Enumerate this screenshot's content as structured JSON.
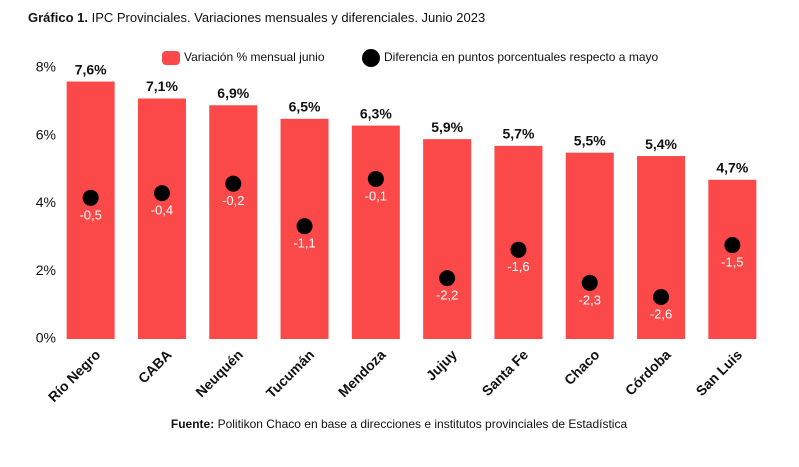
{
  "chart_data": {
    "type": "bar",
    "title_label": "Gráfico 1.",
    "title": "IPC Provinciales. Variaciones mensuales y diferenciales. Junio 2023",
    "source_label": "Fuente:",
    "source": "Politikon Chaco en base a direcciones e institutos provinciales de Estadística",
    "categories": [
      "Río Negro",
      "CABA",
      "Neuquén",
      "Tucumán",
      "Mendoza",
      "Jujuy",
      "Santa Fe",
      "Chaco",
      "Córdoba",
      "San Luis"
    ],
    "series": [
      {
        "name": "Variación % mensual junio",
        "type": "bar",
        "color": "#fb4848",
        "values": [
          7.6,
          7.1,
          6.9,
          6.5,
          6.3,
          5.9,
          5.7,
          5.5,
          5.4,
          4.7
        ],
        "value_labels": [
          "7,6%",
          "7,1%",
          "6,9%",
          "6,5%",
          "6,3%",
          "5,9%",
          "5,7%",
          "5,5%",
          "5,4%",
          "4,7%"
        ]
      },
      {
        "name": "Diferencia en puntos porcentuales respecto a mayo",
        "type": "scatter",
        "color": "#000000",
        "axis": "y2",
        "values": [
          -0.5,
          -0.4,
          -0.2,
          -1.1,
          -0.1,
          -2.2,
          -1.6,
          -2.3,
          -2.6,
          -1.5
        ],
        "value_labels": [
          "-0,5",
          "-0,4",
          "-0,2",
          "-1,1",
          "-0,1",
          "-2,2",
          "-1,6",
          "-2,3",
          "-2,6",
          "-1,5"
        ]
      }
    ],
    "ylim": [
      0,
      8
    ],
    "yticks": [
      {
        "value": 0,
        "label": "0%"
      },
      {
        "value": 2,
        "label": "2%"
      },
      {
        "value": 4,
        "label": "4%"
      },
      {
        "value": 6,
        "label": "6%"
      },
      {
        "value": 8,
        "label": "8%"
      }
    ],
    "y2lim": [
      -3.49,
      2.25
    ],
    "grid": false,
    "legend": "top"
  }
}
